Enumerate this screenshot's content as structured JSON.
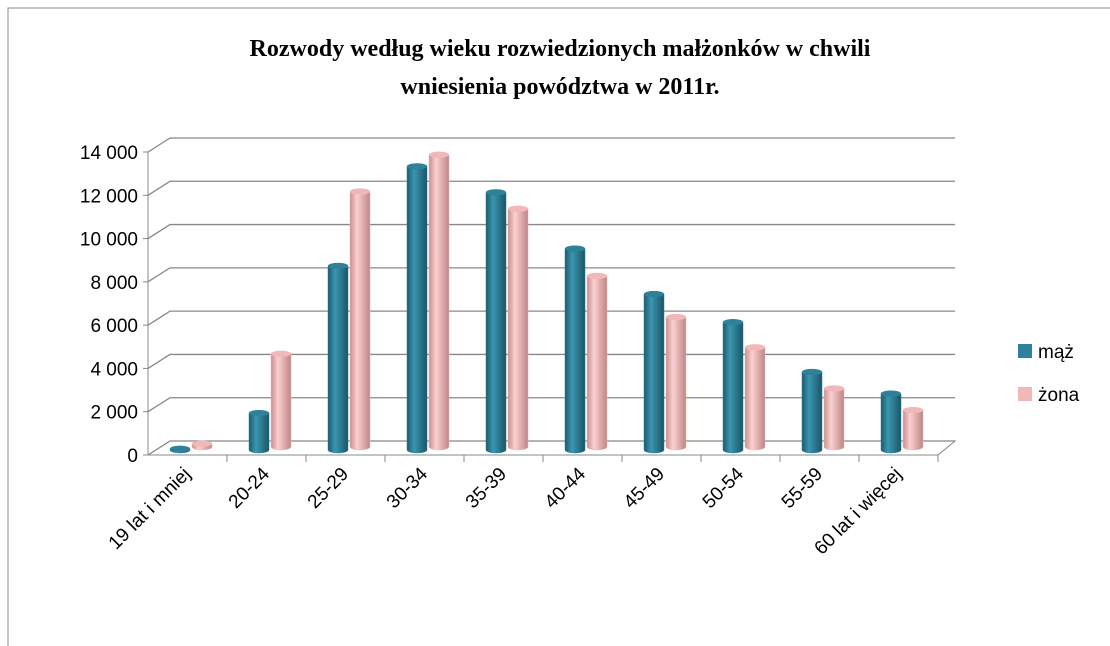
{
  "chart_data": {
    "type": "bar",
    "title_lines": [
      "Rozwody według wieku rozwiedzionych małżonków w chwili",
      "wniesienia powództwa w 2011r."
    ],
    "categories": [
      "19 lat i mniej",
      "20-24",
      "25-29",
      "30-34",
      "35-39",
      "40-44",
      "45-49",
      "50-54",
      "55-59",
      "60 lat i więcej"
    ],
    "series": [
      {
        "name": "mąż",
        "color": "#2e8198",
        "values": [
          50,
          1700,
          8500,
          13100,
          11900,
          9300,
          7200,
          5900,
          3600,
          2600
        ]
      },
      {
        "name": "żona",
        "color": "#f2b8b8",
        "values": [
          150,
          4300,
          11800,
          13500,
          11000,
          7900,
          6000,
          4600,
          2700,
          1700
        ]
      }
    ],
    "ylim": [
      0,
      14000
    ],
    "yticks": [
      0,
      {
        "value": 2000,
        "label": "2 000"
      },
      {
        "value": 4000,
        "label": "4 000"
      },
      {
        "value": 6000,
        "label": "6 000"
      },
      {
        "value": 8000,
        "label": "8 000"
      },
      {
        "value": 10000,
        "label": "10 000"
      },
      {
        "value": 12000,
        "label": "12 000"
      },
      {
        "value": 14000,
        "label": "14 000"
      }
    ],
    "grid": true,
    "legend": "right"
  }
}
